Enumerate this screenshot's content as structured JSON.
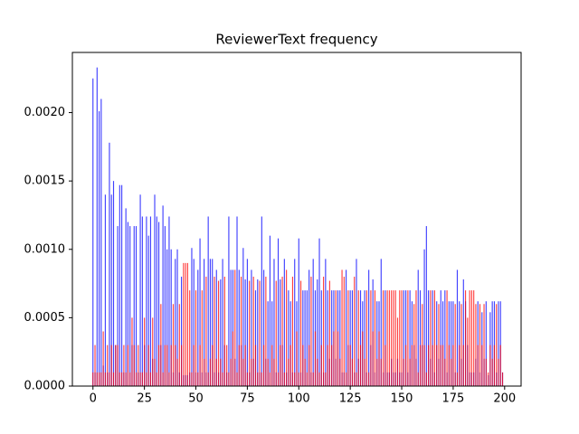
{
  "chart_data": {
    "type": "bar",
    "title": "ReviewerText frequency",
    "x": [
      0,
      1,
      2,
      3,
      4,
      5,
      6,
      7,
      8,
      9,
      10,
      11,
      12,
      13,
      14,
      15,
      16,
      17,
      18,
      19,
      20,
      21,
      22,
      23,
      24,
      25,
      26,
      27,
      28,
      29,
      30,
      31,
      32,
      33,
      34,
      35,
      36,
      37,
      38,
      39,
      40,
      41,
      42,
      43,
      44,
      45,
      46,
      47,
      48,
      49,
      50,
      51,
      52,
      53,
      54,
      55,
      56,
      57,
      58,
      59,
      60,
      61,
      62,
      63,
      64,
      65,
      66,
      67,
      68,
      69,
      70,
      71,
      72,
      73,
      74,
      75,
      76,
      77,
      78,
      79,
      80,
      81,
      82,
      83,
      84,
      85,
      86,
      87,
      88,
      89,
      90,
      91,
      92,
      93,
      94,
      95,
      96,
      97,
      98,
      99,
      100,
      101,
      102,
      103,
      104,
      105,
      106,
      107,
      108,
      109,
      110,
      111,
      112,
      113,
      114,
      115,
      116,
      117,
      118,
      119,
      120,
      121,
      122,
      123,
      124,
      125,
      126,
      127,
      128,
      129,
      130,
      131,
      132,
      133,
      134,
      135,
      136,
      137,
      138,
      139,
      140,
      141,
      142,
      143,
      144,
      145,
      146,
      147,
      148,
      149,
      150,
      151,
      152,
      153,
      154,
      155,
      156,
      157,
      158,
      159,
      160,
      161,
      162,
      163,
      164,
      165,
      166,
      167,
      168,
      169,
      170,
      171,
      172,
      173,
      174,
      175,
      176,
      177,
      178,
      179,
      180,
      181,
      182,
      183,
      184,
      185,
      186,
      187,
      188,
      189,
      190,
      191,
      192,
      193,
      194,
      195,
      196,
      197,
      198,
      199
    ],
    "series": [
      {
        "color": "#0000ff",
        "values": [
          0.00225,
          0.0001,
          0.00233,
          0.00201,
          0.0021,
          0.00015,
          0.0014,
          0.0001,
          0.00178,
          0.0014,
          0.0015,
          0.0003,
          0.00117,
          0.00147,
          0.00147,
          0.0001,
          0.0013,
          0.0012,
          0.00117,
          0.0003,
          0.00117,
          0.00117,
          0.0001,
          0.0014,
          0.00124,
          0.0003,
          0.00124,
          0.0011,
          0.00124,
          0.0002,
          0.0014,
          0.00124,
          0.0012,
          0.0003,
          0.00132,
          0.00117,
          0.001,
          0.00124,
          0.001,
          0.0001,
          0.00093,
          0.001,
          0.0001,
          0.0008,
          8e-05,
          8e-05,
          8e-05,
          0.0001,
          0.00101,
          0.00093,
          0.0001,
          0.00085,
          0.00108,
          0.0001,
          0.00093,
          0.0001,
          0.00124,
          0.00093,
          0.00093,
          0.0001,
          0.00085,
          0.0001,
          0.00078,
          0.00093,
          0.0003,
          0.0001,
          0.00124,
          0.00085,
          0.00085,
          0.0002,
          0.00124,
          0.00085,
          0.0003,
          0.00101,
          0.00078,
          0.00093,
          0.0001,
          0.00085,
          0.0002,
          0.0007,
          0.00078,
          0.0001,
          0.00124,
          0.00085,
          0.0002,
          0.00062,
          0.0011,
          0.00062,
          0.00093,
          0.0001,
          0.00108,
          0.00078,
          0.0003,
          0.00093,
          0.0001,
          0.0007,
          0.00062,
          0.0001,
          0.00093,
          0.00062,
          0.00108,
          0.0001,
          0.0007,
          0.0007,
          0.0007,
          0.00085,
          0.0001,
          0.00093,
          0.0007,
          0.00078,
          0.00108,
          0.0007,
          0.0001,
          0.00093,
          0.0007,
          0.0002,
          0.0007,
          0.0007,
          0.0002,
          0.0007,
          0.0007,
          0.0001,
          0.0001,
          0.00085,
          0.0003,
          0.0007,
          0.0007,
          0.0001,
          0.00093,
          0.0002,
          0.0007,
          0.00062,
          0.0007,
          0.0001,
          0.00085,
          0.0003,
          0.00078,
          0.0001,
          0.00062,
          0.00062,
          0.00093,
          0.0001,
          0.0007,
          0.0001,
          0.0001,
          0.0002,
          0.0001,
          0.0001,
          0.0002,
          0.0001,
          0.0001,
          0.0007,
          0.0007,
          0.0001,
          0.0007,
          0.00062,
          0.0003,
          0.0002,
          0.00085,
          0.0007,
          0.0003,
          0.001,
          0.00117,
          0.0007,
          0.0002,
          0.0007,
          0.0001,
          0.00062,
          0.0002,
          0.0007,
          0.00062,
          0.0007,
          0.0001,
          0.00062,
          0.00062,
          0.00062,
          0.0001,
          0.00085,
          0.00062,
          0.0002,
          0.00078,
          0.00062,
          0.0003,
          0.0001,
          0.0001,
          0.0001,
          0.0002,
          0.00062,
          0.0001,
          0.00054,
          0.0002,
          0.00062,
          8e-05,
          0.00054,
          0.00062,
          0.00062,
          0.0001,
          0.00062,
          0.00062,
          0.0001
        ]
      },
      {
        "color": "#ff0000",
        "values": [
          0.0001,
          0.0003,
          0.0001,
          0.0001,
          0.0001,
          0.0004,
          0.0001,
          0.0003,
          0.0001,
          0.0003,
          0.0001,
          0.0003,
          0.0003,
          0.0001,
          0.0001,
          0.0003,
          0.0001,
          0.0003,
          0.0001,
          0.0005,
          0.0003,
          0.0001,
          0.0003,
          0.0001,
          0.0001,
          0.0005,
          0.0001,
          0.0003,
          0.0001,
          0.0005,
          0.0002,
          0.0001,
          0.0003,
          0.0006,
          0.0001,
          0.0003,
          0.0003,
          0.0001,
          0.0003,
          0.0006,
          0.0003,
          0.0002,
          0.0006,
          0.0003,
          0.0009,
          0.0009,
          0.0009,
          0.0007,
          0.0001,
          0.0003,
          0.0007,
          0.0001,
          0.0003,
          0.0007,
          0.0002,
          0.0008,
          0.0001,
          0.0002,
          0.0003,
          0.0008,
          0.0002,
          0.00077,
          0.0002,
          0.0001,
          0.0008,
          0.0003,
          0.0001,
          0.0002,
          0.0004,
          0.00085,
          0.0001,
          0.0003,
          0.0008,
          0.0002,
          0.0003,
          0.0001,
          0.00077,
          0.0002,
          0.0008,
          0.0003,
          0.0001,
          0.00077,
          0.0001,
          0.0003,
          0.0008,
          0.0002,
          0.0001,
          0.0003,
          0.0002,
          0.00077,
          0.0001,
          0.0003,
          0.0008,
          0.0001,
          0.00085,
          0.0002,
          0.0003,
          0.0008,
          0.0001,
          0.0004,
          0.0001,
          0.00077,
          0.0003,
          0.0002,
          0.0001,
          0.0003,
          0.0008,
          0.0001,
          0.0004,
          0.0002,
          0.0001,
          0.0003,
          0.0008,
          0.0001,
          0.0003,
          0.00077,
          0.0003,
          0.0004,
          0.0007,
          0.0004,
          0.0002,
          0.00085,
          0.0008,
          0.0001,
          0.0007,
          0.0003,
          0.0002,
          0.0008,
          0.0001,
          0.0007,
          0.0003,
          0.0004,
          0.0002,
          0.0007,
          0.0001,
          0.0007,
          0.0004,
          0.0007,
          0.0002,
          0.0004,
          0.0002,
          0.0007,
          0.0003,
          0.0007,
          0.0007,
          0.0007,
          0.0007,
          0.0007,
          0.0005,
          0.0007,
          0.0007,
          0.0002,
          0.0003,
          0.0007,
          0.0002,
          0.0003,
          0.0006,
          0.0007,
          0.0001,
          0.0003,
          0.0006,
          0.0003,
          0.0001,
          0.0003,
          0.0007,
          0.0003,
          0.0007,
          0.0003,
          0.0006,
          0.0003,
          0.0003,
          0.0002,
          0.0007,
          0.0003,
          0.0002,
          0.0003,
          0.0006,
          0.0001,
          0.0003,
          0.0006,
          0.0003,
          0.0007,
          0.0005,
          0.0007,
          0.0007,
          0.0007,
          0.0006,
          0.0003,
          0.0006,
          0.0003,
          0.0006,
          0.0002,
          0.0001,
          0.0003,
          0.0002,
          0.0003,
          0.0006,
          0.0002,
          0.0003,
          0.0001
        ]
      }
    ],
    "xlim": [
      -10,
      208
    ],
    "xticks": [
      0,
      25,
      50,
      75,
      100,
      125,
      150,
      175,
      200
    ],
    "ylim": [
      0,
      0.00244
    ],
    "yticks": [
      {
        "value": 0,
        "label": "0.0000"
      },
      {
        "value": 0.0005,
        "label": "0.0005"
      },
      {
        "value": 0.001,
        "label": "0.0010"
      },
      {
        "value": 0.0015,
        "label": "0.0015"
      },
      {
        "value": 0.002,
        "label": "0.0020"
      }
    ]
  }
}
